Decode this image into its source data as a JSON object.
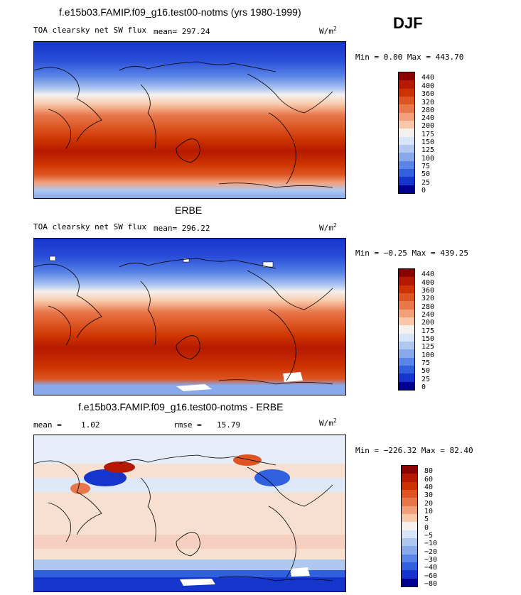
{
  "season": "DJF",
  "units_base": "W/m",
  "units_exp": "2",
  "panels": [
    {
      "title": "f.e15b03.FAMIP.f09_g16.test00-notms (yrs 1980-1999)",
      "variable": "TOA clearsky net SW flux",
      "stat_label": "mean=",
      "stat_value": "297.24",
      "minmax": "Min =   0.00 Max = 443.70",
      "levels": [
        "440",
        "400",
        "360",
        "320",
        "280",
        "240",
        "200",
        "175",
        "150",
        "125",
        "100",
        "75",
        "50",
        "25",
        "0"
      ]
    },
    {
      "title": "ERBE",
      "variable": "TOA clearsky net SW flux",
      "stat_label": "mean=",
      "stat_value": "296.22",
      "minmax": "Min =  −0.25 Max = 439.25",
      "levels": [
        "440",
        "400",
        "360",
        "320",
        "280",
        "240",
        "200",
        "175",
        "150",
        "125",
        "100",
        "75",
        "50",
        "25",
        "0"
      ]
    },
    {
      "title": "f.e15b03.FAMIP.f09_g16.test00-notms - ERBE",
      "mean_label": "mean =",
      "mean_value": "1.02",
      "rmse_label": "rmse =",
      "rmse_value": "15.79",
      "minmax": "Min = −226.32 Max =  82.40",
      "levels": [
        "80",
        "60",
        "40",
        "30",
        "20",
        "10",
        "5",
        "0",
        "−5",
        "−10",
        "−20",
        "−30",
        "−40",
        "−60",
        "−80"
      ]
    }
  ],
  "colors": {
    "flux_scale": [
      "#8b0000",
      "#b51a00",
      "#cc3300",
      "#dd5522",
      "#e8774a",
      "#f2a07a",
      "#f8c8a8",
      "#f5f0ee",
      "#d8e4f8",
      "#b0c8f0",
      "#88aaec",
      "#5a85e6",
      "#3060dd",
      "#1535cc",
      "#000090"
    ],
    "diff_scale": [
      "#8b0000",
      "#b51a00",
      "#cc3300",
      "#dd5522",
      "#e8774a",
      "#f2a07a",
      "#f8c8a8",
      "#f5f0ee",
      "#d8e4f8",
      "#b0c8f0",
      "#88aaec",
      "#5a85e6",
      "#3060dd",
      "#1535cc",
      "#000090"
    ]
  }
}
